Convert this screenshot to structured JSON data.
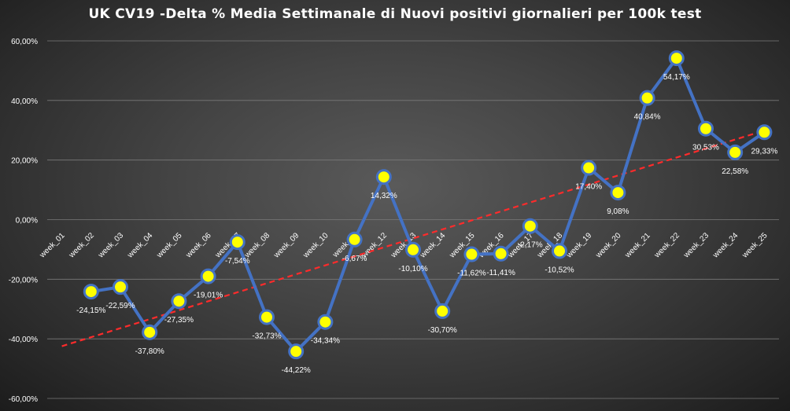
{
  "chart_data": {
    "type": "line",
    "title": "UK  CV19  -Delta % Media Settimanale di Nuovi positivi giornalieri per 100k test",
    "xlabel": "",
    "ylabel": "",
    "ylim": [
      -60,
      60
    ],
    "y_ticks": [
      "60,00%",
      "40,00%",
      "20,00%",
      "0,00%",
      "-20,00%",
      "-40,00%",
      "-60,00%"
    ],
    "grid": true,
    "categories": [
      "week_01",
      "week_02",
      "week_03",
      "week_04",
      "week_05",
      "week_06",
      "week_07",
      "week_08",
      "week_09",
      "week_10",
      "week_11",
      "week_12",
      "week_13",
      "week_14",
      "week_15",
      "week_16",
      "week_17",
      "week_18",
      "week_19",
      "week_20",
      "week_21",
      "week_22",
      "week_23",
      "week_24",
      "week_25"
    ],
    "series": [
      {
        "values": [
          null,
          -24.15,
          -22.59,
          -37.8,
          -27.35,
          -19.01,
          -7.54,
          -32.73,
          -44.22,
          -34.34,
          -6.67,
          14.32,
          -10.1,
          -30.7,
          -11.62,
          -11.41,
          -2.17,
          -10.52,
          17.4,
          9.08,
          40.84,
          54.17,
          30.53,
          22.58,
          29.33
        ],
        "data_labels": [
          "",
          "-24,15%",
          "-22,59%",
          "-37,80%",
          "-27,35%",
          "-19,01%",
          "-7,54%",
          "-32,73%",
          "-44,22%",
          "-34,34%",
          "-6,67%",
          "14,32%",
          "-10,10%",
          "-30,70%",
          "-11,62%",
          "-11,41%",
          "-2,17%",
          "-10,52%",
          "17,40%",
          "9,08%",
          "40,84%",
          "54,17%",
          "30,53%",
          "22,58%",
          "29,33%"
        ],
        "line_color": "#4472c4",
        "marker_color": "#ffff00"
      }
    ],
    "trendline": {
      "type": "linear",
      "color": "#ff2b2b",
      "style": "dashed"
    }
  }
}
